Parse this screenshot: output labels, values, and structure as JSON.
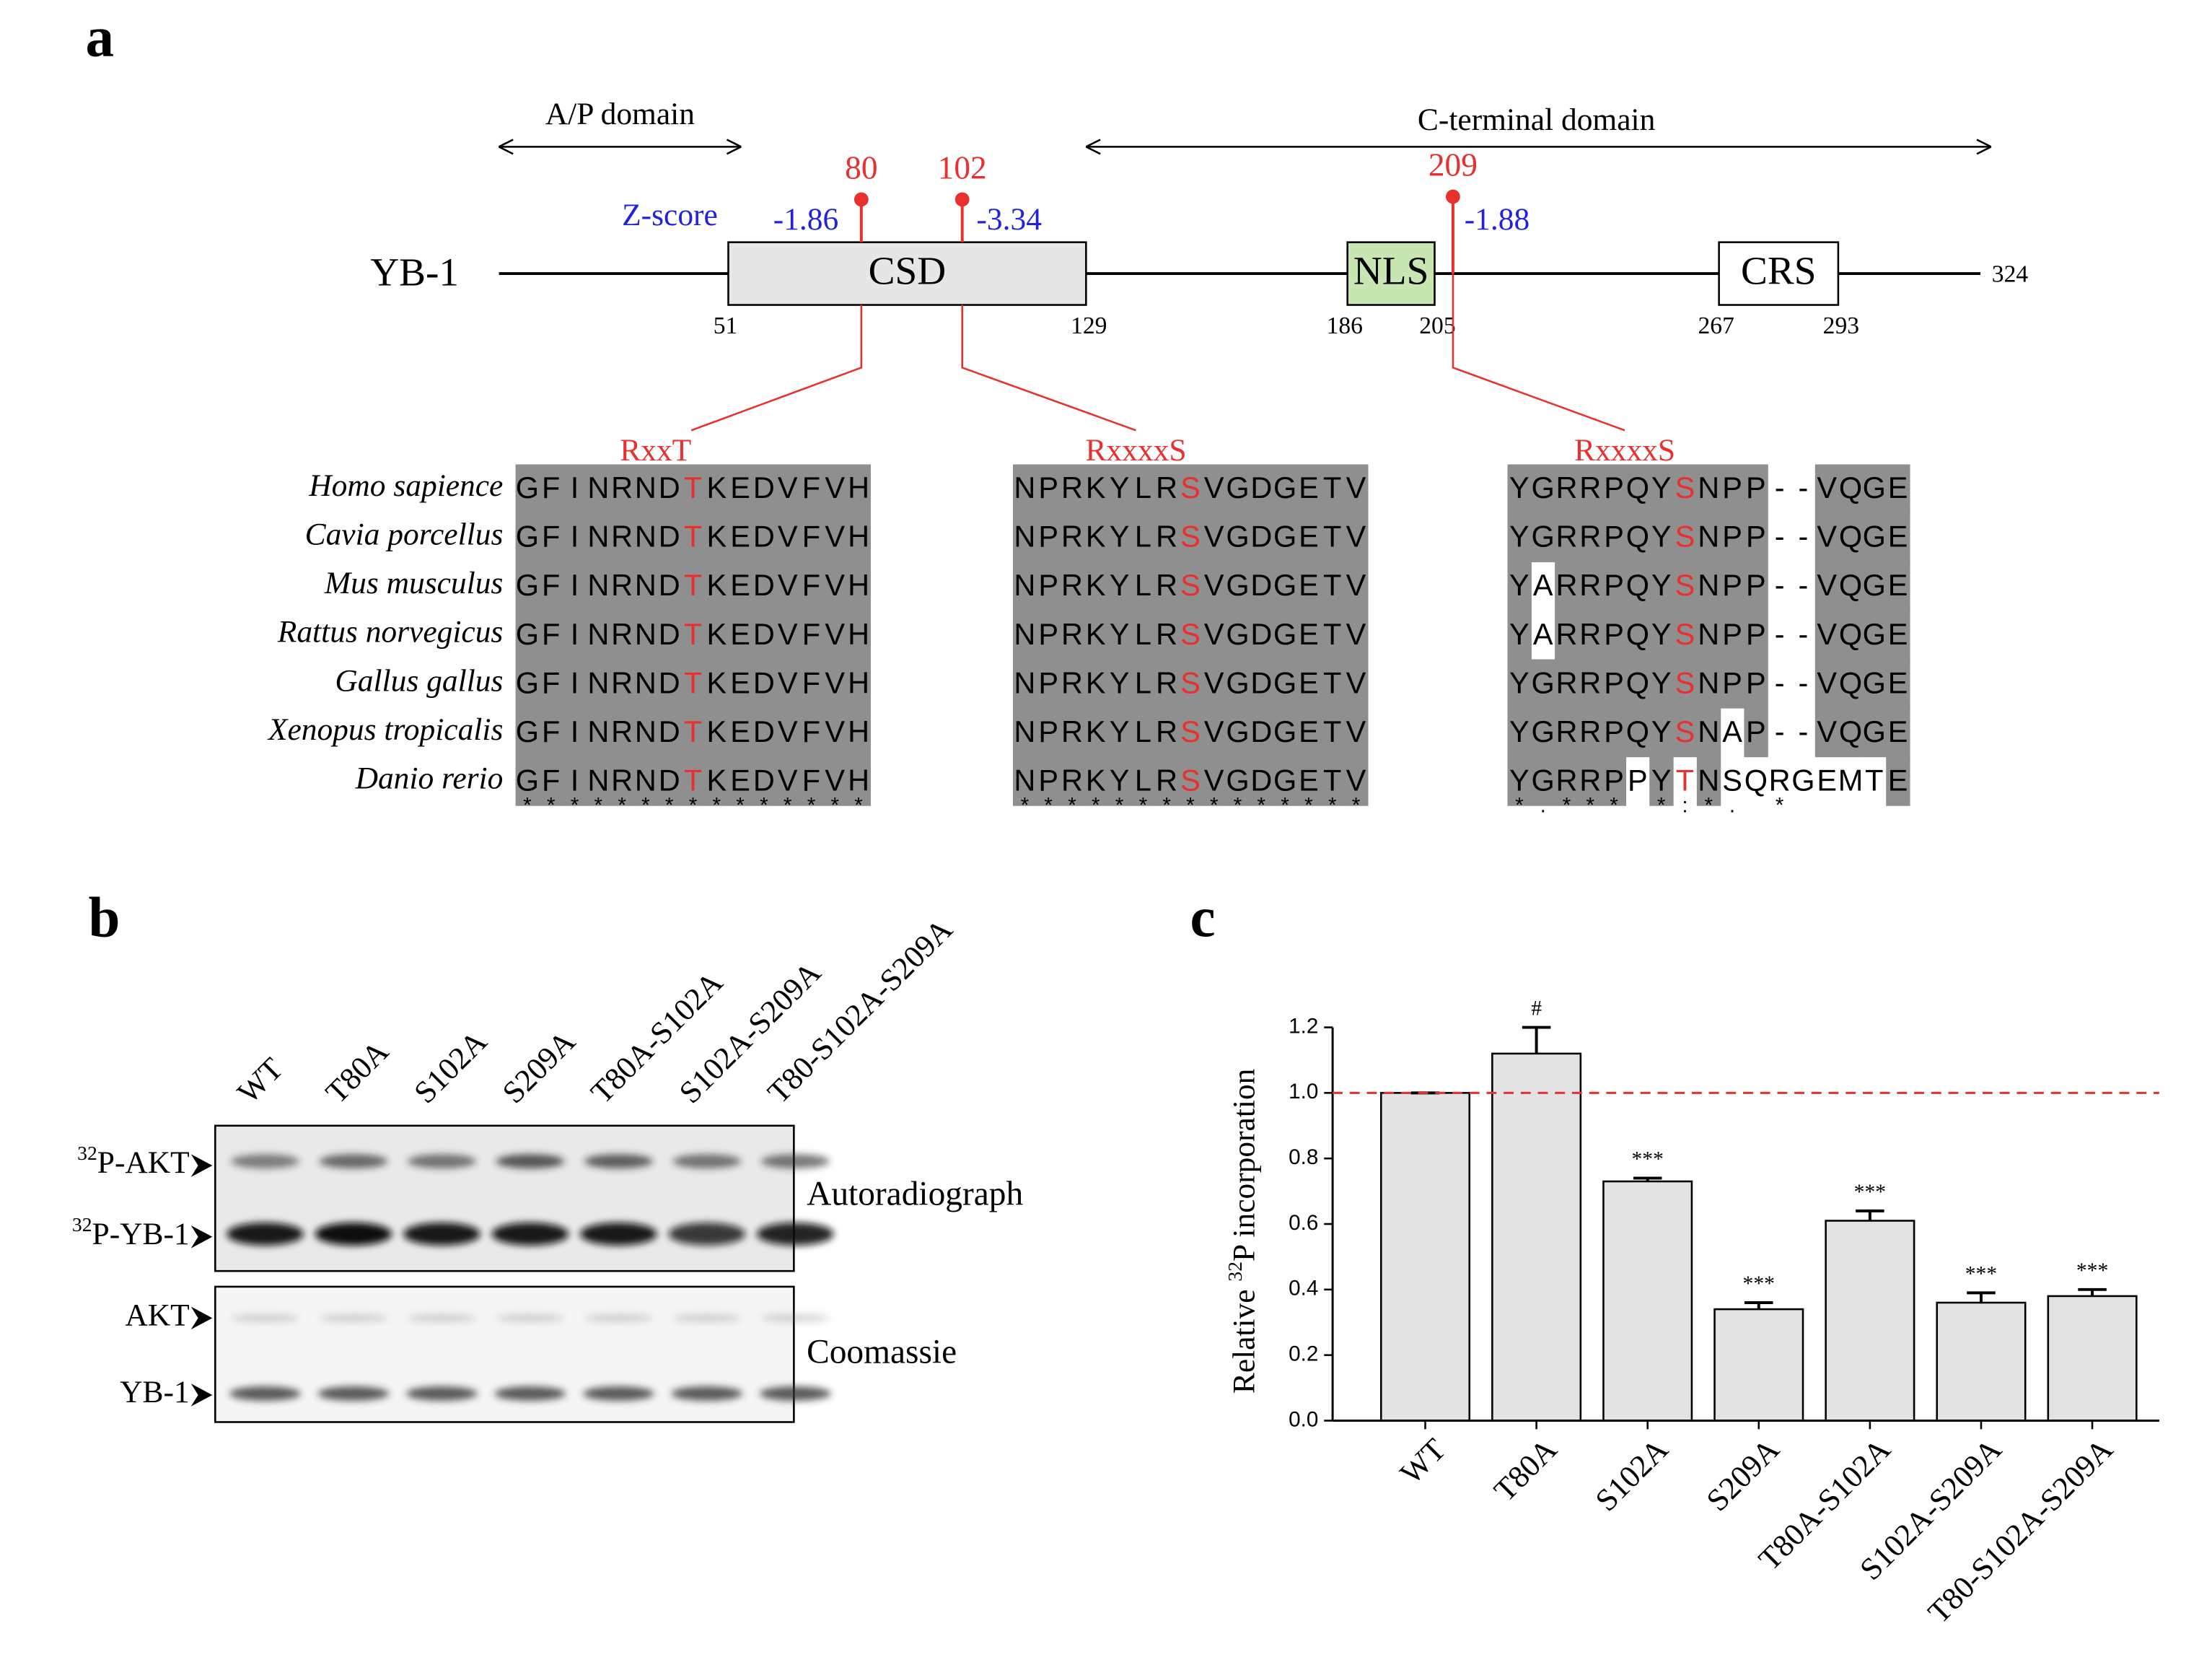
{
  "panel_labels": [
    "a",
    "b",
    "c"
  ],
  "domain_map": {
    "protein": "YB-1",
    "length": 324,
    "domains": [
      {
        "label": "A/P domain"
      },
      {
        "label": "C-terminal domain"
      }
    ],
    "zscore_label": "Z-score",
    "boxes": [
      {
        "label": "CSD",
        "start": 51,
        "end": 129
      },
      {
        "label": "NLS",
        "start": 186,
        "end": 205
      },
      {
        "label": "CRS",
        "start": 267,
        "end": 293
      }
    ],
    "sites": [
      {
        "position": 80,
        "zscore": -1.86,
        "motif": "RxxT"
      },
      {
        "position": 102,
        "zscore": -3.34,
        "motif": "RxxxxS"
      },
      {
        "position": 209,
        "zscore": -1.88,
        "motif": "RxxxxS"
      }
    ]
  },
  "alignment": {
    "species": [
      "Homo sapience",
      "Cavia porcellus",
      "Mus musculus",
      "Rattus norvegicus",
      "Gallus gallus",
      "Xenopus  tropicalis",
      "Danio rerio"
    ],
    "blocks": [
      {
        "sequences": [
          [
            "GFINRND",
            "T",
            "KEDVFVH"
          ],
          [
            "GFINRND",
            "T",
            "KEDVFVH"
          ],
          [
            "GFINRND",
            "T",
            "KEDVFVH"
          ],
          [
            "GFINRND",
            "T",
            "KEDVFVH"
          ],
          [
            "GFINRND",
            "T",
            "KEDVFVH"
          ],
          [
            "GFINRND",
            "T",
            "KEDVFVH"
          ],
          [
            "GFINRND",
            "T",
            "KEDVFVH"
          ]
        ],
        "conservation": "***************"
      },
      {
        "sequences": [
          [
            "NPRKYLR",
            "S",
            "VGDGETV"
          ],
          [
            "NPRKYLR",
            "S",
            "VGDGETV"
          ],
          [
            "NPRKYLR",
            "S",
            "VGDGETV"
          ],
          [
            "NPRKYLR",
            "S",
            "VGDGETV"
          ],
          [
            "NPRKYLR",
            "S",
            "VGDGETV"
          ],
          [
            "NPRKYLR",
            "S",
            "VGDGETV"
          ],
          [
            "NPRKYLR",
            "S",
            "VGDGETV"
          ]
        ],
        "conservation": "***************"
      },
      {
        "sequences": [
          [
            "YGRRPQY",
            "S",
            "NPP--VQGE"
          ],
          [
            "YGRRPQY",
            "S",
            "NPP--VQGE"
          ],
          [
            "YARRPQY",
            "S",
            "NPP--VQGE"
          ],
          [
            "YARRPQY",
            "S",
            "NPP--VQGE"
          ],
          [
            "YGRRPQY",
            "S",
            "NPP--VQGE"
          ],
          [
            "YGRRPQY",
            "S",
            "NAP--VQGE"
          ],
          [
            "YGRRPPY",
            "T",
            "NSQRGEMTE"
          ]
        ],
        "conservation": "*.***  *:*.      *"
      }
    ]
  },
  "blot": {
    "lanes": [
      "WT",
      "T80A",
      "S102A",
      "S209A",
      "T80A-S102A",
      "S102A-S209A",
      "T80-S102A-S209A"
    ],
    "band_labels": [
      {
        "sup": "32",
        "text": "P-AKT"
      },
      {
        "sup": "32",
        "text": "P-YB-1"
      },
      {
        "text": "AKT"
      },
      {
        "text": "YB-1"
      }
    ],
    "panel_names": [
      "Autoradiograph",
      "Coomassie"
    ]
  },
  "chart_data": {
    "type": "bar",
    "ylabel": {
      "before": "Relative ",
      "sup": "32",
      "after": "P incorporation"
    },
    "categories": [
      "WT",
      "T80A",
      "S102A",
      "S209A",
      "T80A-S102A",
      "S102A-S209A",
      "T80-S102A-S209A"
    ],
    "values": [
      1.0,
      1.12,
      0.73,
      0.34,
      0.61,
      0.36,
      0.38
    ],
    "errors": [
      0,
      0.08,
      0.01,
      0.02,
      0.03,
      0.03,
      0.02
    ],
    "significance": [
      null,
      "#",
      "***",
      "***",
      "***",
      "***",
      "***"
    ],
    "color": "#e3e3e3",
    "ylim": [
      0,
      1.2
    ],
    "yticks": [
      {
        "value": 0,
        "label": "0.0"
      },
      0.2,
      0.4,
      0.6,
      0.8,
      {
        "value": 1,
        "label": "1.0"
      },
      1.2
    ],
    "reference_line": 1,
    "reference_color": "#e8302e"
  }
}
